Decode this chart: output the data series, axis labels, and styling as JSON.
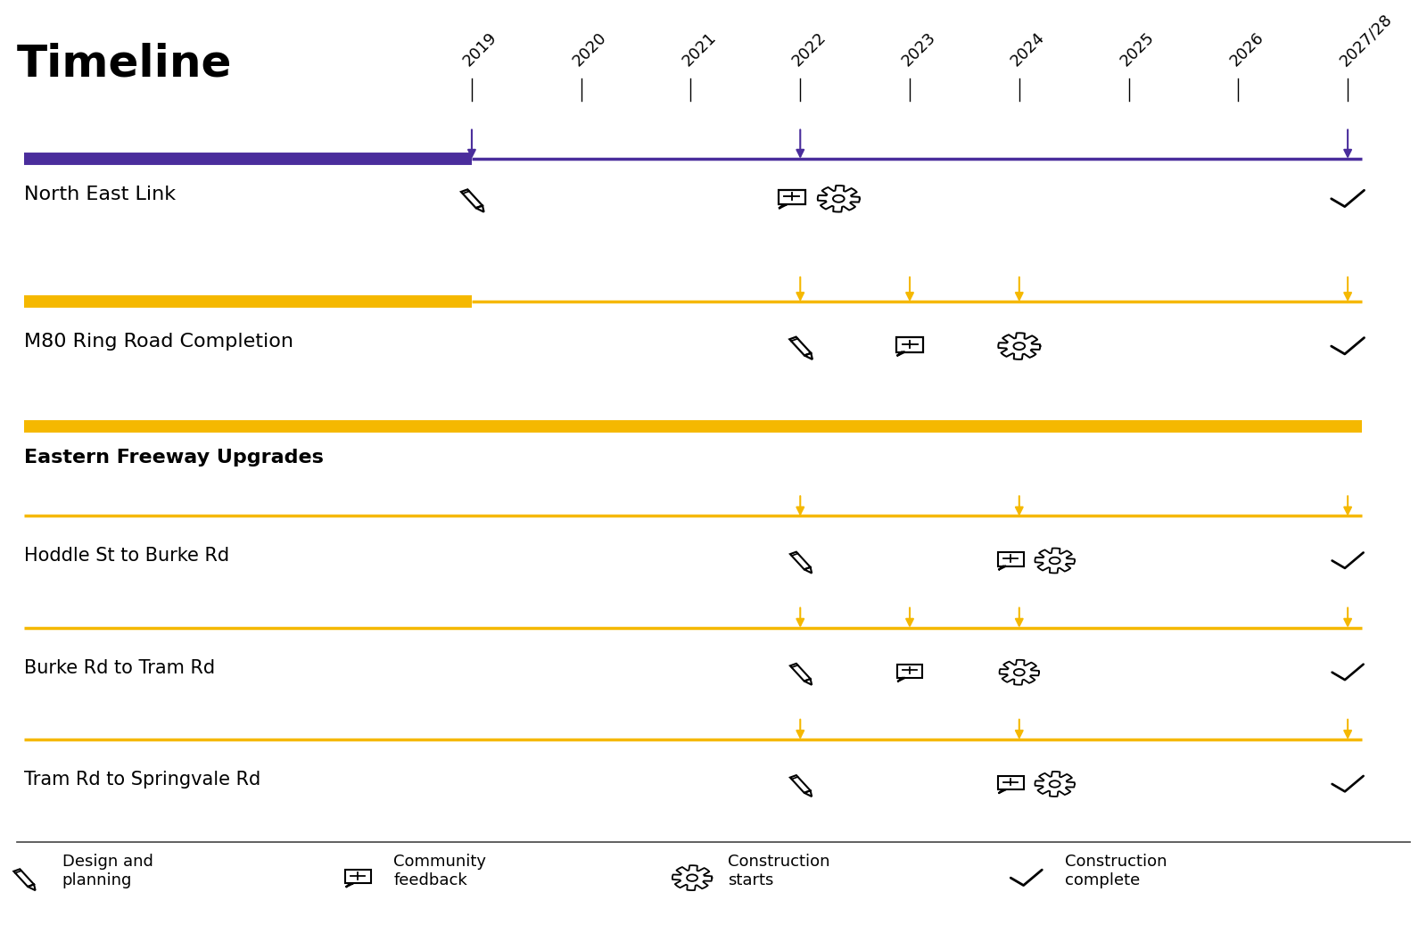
{
  "title": "Timeline",
  "years": [
    "2019",
    "2020",
    "2021",
    "2022",
    "2023",
    "2024",
    "2025",
    "2026",
    "2027/28"
  ],
  "purple_color": "#4a2d9c",
  "yellow_color": "#f5b800",
  "bg_color": "#ffffff",
  "timeline_lw_thick": 10,
  "timeline_lw_thin": 2.5,
  "arrow_color_purple": "#4a2d9c",
  "arrow_color_yellow": "#f5b800",
  "title_fontsize": 36,
  "label_fontsize": 16,
  "sublabel_fontsize": 15,
  "year_fontsize": 13,
  "legend_fontsize": 13,
  "nel_arrows_idx": [
    0,
    3,
    8
  ],
  "m80_arrows_idx": [
    3,
    4,
    5,
    8
  ],
  "hoddle_arrows_idx": [
    3,
    5,
    8
  ],
  "burke_arrows_idx": [
    3,
    4,
    5,
    8
  ],
  "tram_arrows_idx": [
    3,
    5,
    8
  ]
}
